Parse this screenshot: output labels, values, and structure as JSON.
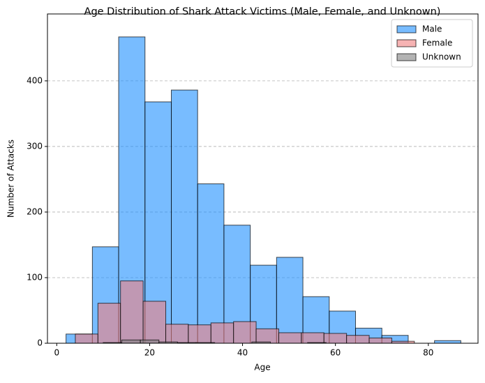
{
  "chart_data": {
    "type": "histogram",
    "title": "Age Distribution of Shark Attack Victims (Male, Female, and Unknown)",
    "x_label": "Age",
    "y_label": "Number of Attacks",
    "series": [
      {
        "name": "Male",
        "color": "#1e90ff",
        "bins": [
          2,
          7.67,
          13.33,
          19,
          24.67,
          30.33,
          36,
          41.67,
          47.33,
          53,
          58.67,
          64.33,
          70,
          75.67,
          81.33,
          87
        ],
        "values": [
          14,
          147,
          467,
          368,
          386,
          243,
          180,
          119,
          131,
          71,
          49,
          23,
          12,
          0,
          4
        ]
      },
      {
        "name": "Female",
        "color": "#f08080",
        "bins": [
          4,
          8.87,
          13.73,
          18.6,
          23.47,
          28.33,
          33.2,
          38.07,
          42.93,
          47.8,
          52.67,
          57.53,
          62.4,
          67.27,
          72.13,
          77
        ],
        "values": [
          14,
          61,
          95,
          64,
          29,
          28,
          31,
          33,
          22,
          16,
          16,
          15,
          12,
          8,
          3
        ]
      },
      {
        "name": "Unknown",
        "color": "#808080",
        "bins": [
          10,
          14,
          18,
          22,
          26,
          30,
          34,
          38,
          42,
          46,
          50,
          54,
          58
        ],
        "values": [
          1,
          5,
          5,
          2,
          1,
          1,
          0,
          0,
          2,
          0,
          0,
          1
        ]
      }
    ],
    "opacity": 0.6,
    "xlim": [
      -2,
      90.7
    ],
    "xticks": [
      0,
      20,
      40,
      60,
      80
    ],
    "ylim": [
      0,
      502
    ],
    "yticks": [
      0,
      100,
      200,
      300,
      400
    ],
    "grid": "y",
    "legend": "upper right"
  }
}
